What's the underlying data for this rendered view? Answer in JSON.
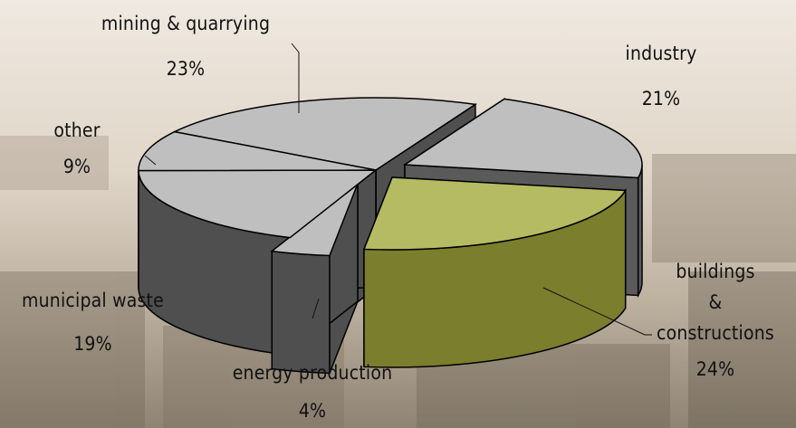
{
  "chart_data": {
    "type": "pie",
    "variant": "3d-exploded",
    "slices": [
      {
        "label": "mining & quarrying",
        "value": 23,
        "value_label": "23%",
        "color": "#bfbfbf",
        "side_color": "#4f4f4f"
      },
      {
        "label": "industry",
        "value": 21,
        "value_label": "21%",
        "color": "#bfbfbf",
        "side_color": "#5a5a5a"
      },
      {
        "label": "buildings & constructions",
        "label_lines": [
          "buildings",
          "&",
          "constructions"
        ],
        "value": 24,
        "value_label": "24%",
        "color": "#b5bb62",
        "side_color": "#7b7e2c"
      },
      {
        "label": "energy production",
        "value": 4,
        "value_label": "4%",
        "color": "#bfbfbf",
        "side_color": "#4f4f4f"
      },
      {
        "label": "municipal waste",
        "value": 19,
        "value_label": "19%",
        "color": "#bfbfbf",
        "side_color": "#4f4f4f"
      },
      {
        "label": "other",
        "value": 9,
        "value_label": "9%",
        "color": "#bfbfbf",
        "side_color": "#4f4f4f"
      }
    ],
    "colors": {
      "highlight": "#b5bb62",
      "highlight_side": "#7b7e2c",
      "neutral": "#bfbfbf",
      "neutral_side": "#4f4f4f"
    }
  }
}
